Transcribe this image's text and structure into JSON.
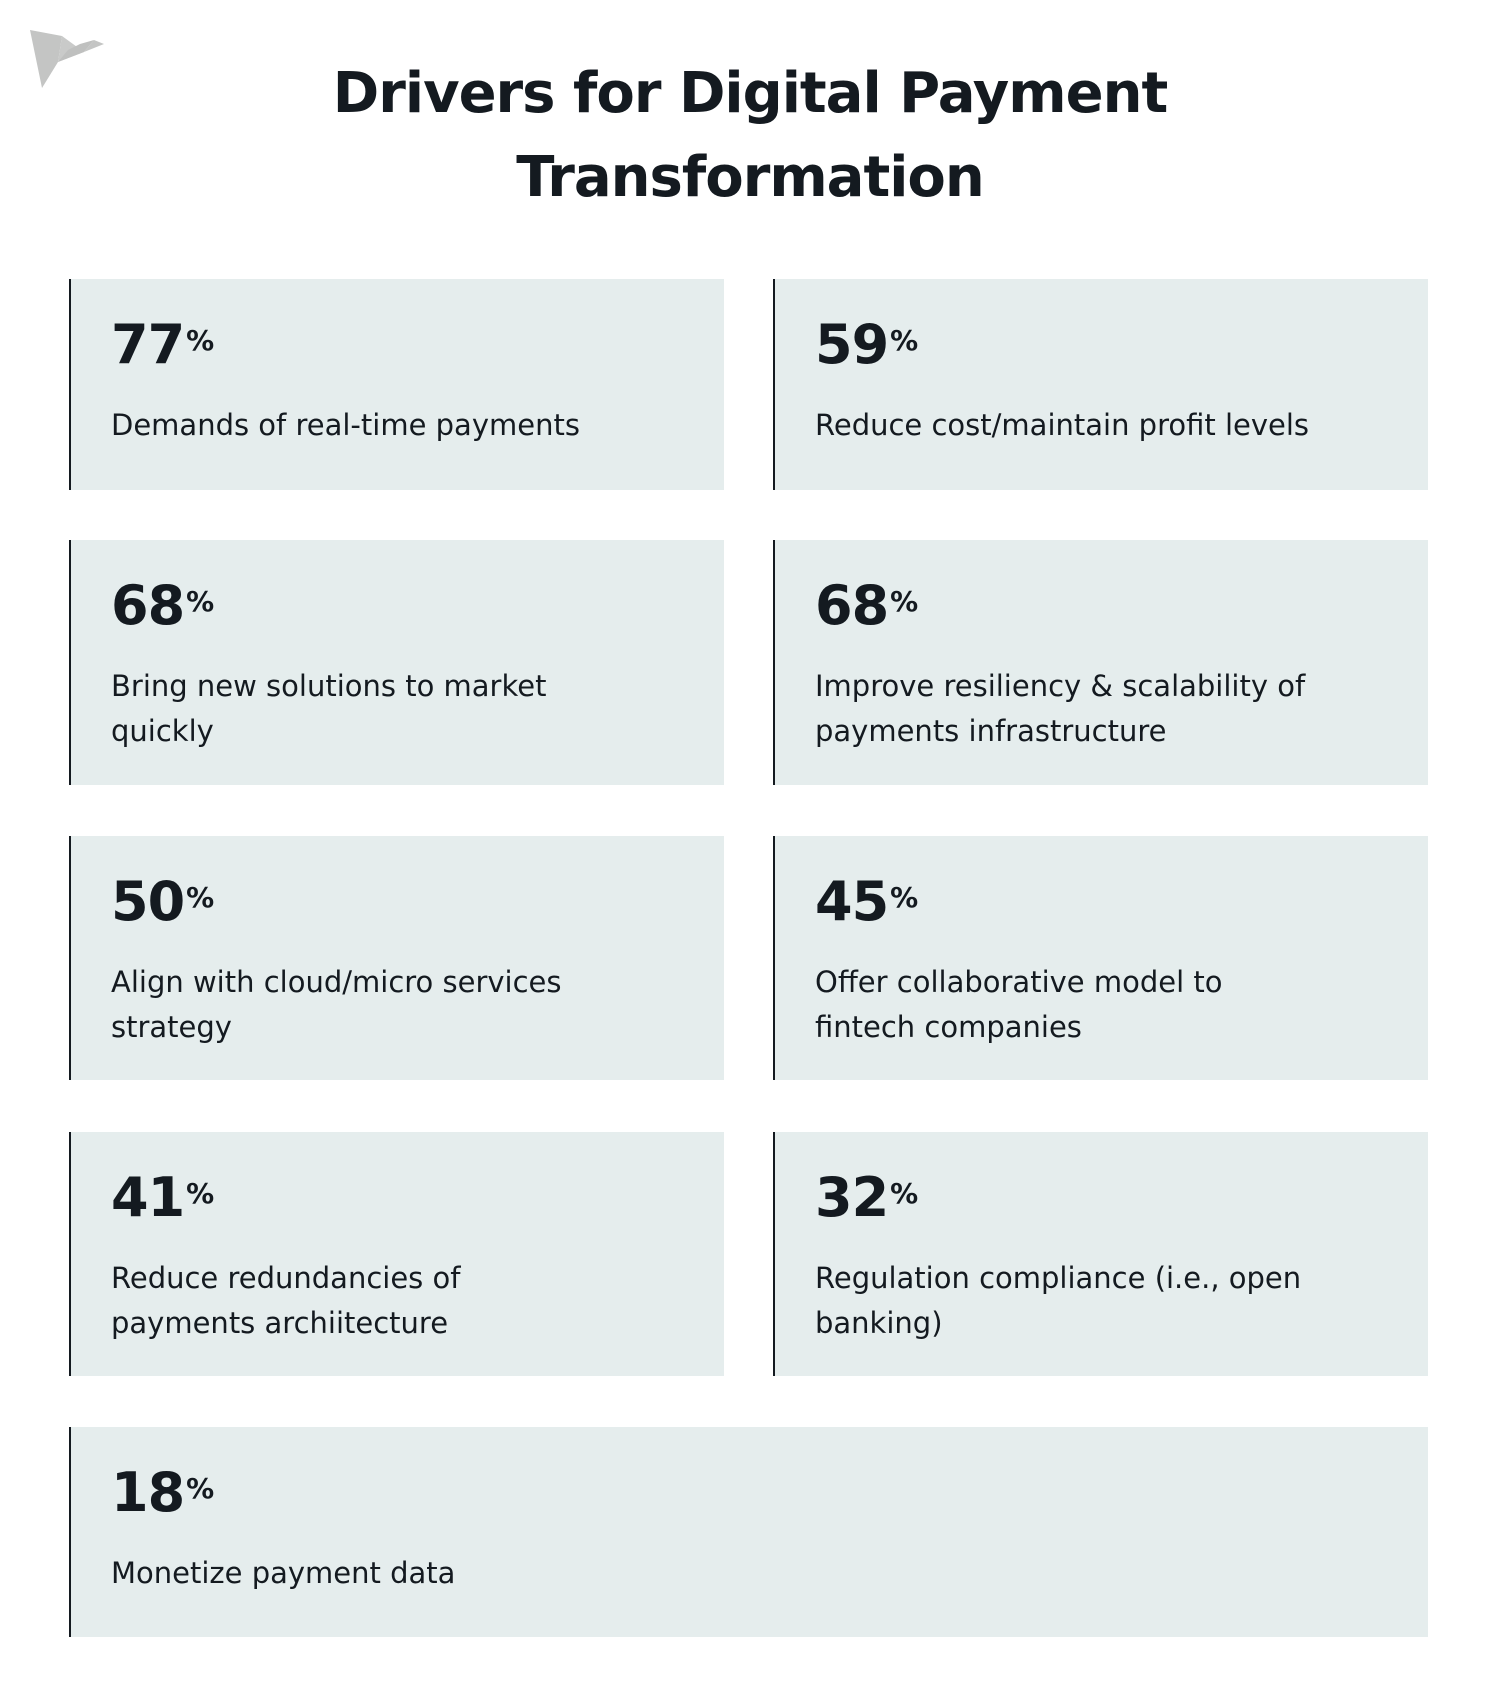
{
  "title": {
    "line1": "Drivers for Digital Payment",
    "line2": "Transformation"
  },
  "logo": {
    "icon": "bird-logo",
    "color": "#c4c5c4"
  },
  "colors": {
    "card_bg": "#e5eded",
    "text": "#141a20"
  },
  "items": [
    {
      "value": "77",
      "unit": "%",
      "label": "Demands of real-time payments"
    },
    {
      "value": "59",
      "unit": "%",
      "label": "Reduce cost/maintain profit levels"
    },
    {
      "value": "68",
      "unit": "%",
      "label": "Bring new solutions to market quickly"
    },
    {
      "value": "68",
      "unit": "%",
      "label": "Improve resiliency & scalability of payments infrastructure"
    },
    {
      "value": "50",
      "unit": "%",
      "label": "Align with cloud/micro services strategy"
    },
    {
      "value": "45",
      "unit": "%",
      "label": "Offer collaborative model to fintech companies"
    },
    {
      "value": "41",
      "unit": "%",
      "label": "Reduce redundancies of payments archiitecture"
    },
    {
      "value": "32",
      "unit": "%",
      "label": "Regulation compliance (i.e., open banking)"
    },
    {
      "value": "18",
      "unit": "%",
      "label": "Monetize payment data"
    }
  ]
}
